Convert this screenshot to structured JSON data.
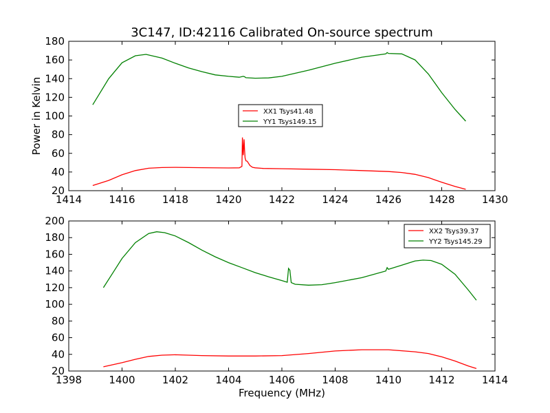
{
  "title": "3C147, ID:42116 Calibrated On-source spectrum",
  "chart_data": [
    {
      "type": "line",
      "xlabel": "",
      "ylabel": "Power in Kelvin",
      "xlim": [
        1414,
        1430
      ],
      "ylim": [
        20,
        180
      ],
      "xticks": [
        "1414",
        "1416",
        "1418",
        "1420",
        "1422",
        "1424",
        "1426",
        "1428",
        "1430"
      ],
      "yticks": [
        "20",
        "40",
        "60",
        "80",
        "100",
        "120",
        "140",
        "160",
        "180"
      ],
      "legend_position": "center",
      "series": [
        {
          "name": "XX1 Tsys41.48",
          "color": "#ff0000",
          "x": [
            1414.9,
            1415.5,
            1416.0,
            1416.5,
            1417.0,
            1417.5,
            1418.0,
            1419.0,
            1420.0,
            1420.4,
            1420.5,
            1420.52,
            1420.55,
            1420.58,
            1420.6,
            1420.62,
            1420.65,
            1420.7,
            1420.8,
            1420.9,
            1421.0,
            1421.3,
            1422.0,
            1423.0,
            1424.0,
            1425.0,
            1426.0,
            1426.5,
            1427.0,
            1427.5,
            1428.0,
            1428.5,
            1428.9
          ],
          "y": [
            25.5,
            31,
            37,
            41.5,
            44,
            44.8,
            45,
            44.6,
            44.3,
            44.5,
            46,
            77,
            58,
            75,
            64,
            55,
            52,
            51.5,
            47,
            45,
            44.5,
            43.8,
            43.5,
            43,
            42.5,
            41.5,
            40.5,
            39.5,
            37.5,
            34,
            29,
            24.5,
            21.5
          ]
        },
        {
          "name": "YY1 Tsys149.15",
          "color": "#008000",
          "x": [
            1414.9,
            1415.5,
            1416.0,
            1416.5,
            1416.9,
            1417.5,
            1418.0,
            1418.5,
            1419.0,
            1419.5,
            1420.0,
            1420.4,
            1420.55,
            1420.6,
            1420.65,
            1421.0,
            1421.5,
            1422.0,
            1423.0,
            1424.0,
            1425.0,
            1425.9,
            1425.95,
            1426.0,
            1426.5,
            1427.0,
            1427.5,
            1428.0,
            1428.5,
            1428.9
          ],
          "y": [
            112,
            140,
            157,
            164.5,
            166,
            162,
            156.5,
            151.5,
            147.5,
            144,
            142.5,
            141.5,
            142.5,
            142,
            141,
            140.5,
            140.8,
            142.5,
            149,
            156.5,
            163,
            166.5,
            168,
            167,
            166.5,
            160,
            145,
            125,
            107,
            94.5
          ]
        }
      ]
    },
    {
      "type": "line",
      "xlabel": "Frequency (MHz)",
      "ylabel": "",
      "xlim": [
        1398,
        1414
      ],
      "ylim": [
        20,
        200
      ],
      "xticks": [
        "1398",
        "1400",
        "1402",
        "1404",
        "1406",
        "1408",
        "1410",
        "1412",
        "1414"
      ],
      "yticks": [
        "20",
        "40",
        "60",
        "80",
        "100",
        "120",
        "140",
        "160",
        "180",
        "200"
      ],
      "legend_position": "top-right",
      "series": [
        {
          "name": "XX2 Tsys39.37",
          "color": "#ff0000",
          "x": [
            1399.3,
            1400.0,
            1400.5,
            1401.0,
            1401.5,
            1402.0,
            1403.0,
            1404.0,
            1405.0,
            1406.0,
            1407.0,
            1408.0,
            1409.0,
            1410.0,
            1411.0,
            1411.5,
            1412.0,
            1412.5,
            1413.0,
            1413.3
          ],
          "y": [
            25,
            30,
            34,
            37.5,
            39,
            39.5,
            38.5,
            38,
            38,
            38.5,
            41,
            44,
            45.5,
            45.5,
            43,
            41,
            37,
            32,
            26,
            23
          ]
        },
        {
          "name": "YY2 Tsys145.29",
          "color": "#008000",
          "x": [
            1399.3,
            1399.7,
            1400.0,
            1400.5,
            1401.0,
            1401.3,
            1401.6,
            1402.0,
            1402.5,
            1403.0,
            1403.5,
            1404.0,
            1404.5,
            1405.0,
            1405.5,
            1406.0,
            1406.2,
            1406.25,
            1406.3,
            1406.35,
            1406.5,
            1407.0,
            1407.5,
            1408.0,
            1409.0,
            1409.9,
            1409.95,
            1410.0,
            1410.5,
            1411.0,
            1411.3,
            1411.6,
            1412.0,
            1412.5,
            1413.0,
            1413.3
          ],
          "y": [
            120,
            140,
            155,
            174,
            185,
            187,
            186,
            182,
            174,
            165,
            157,
            150,
            144,
            138,
            133,
            128.5,
            126.5,
            143,
            141,
            126,
            124,
            123,
            123.5,
            126,
            132,
            140,
            144,
            142,
            147,
            152,
            153,
            152.5,
            148,
            136,
            117,
            105
          ]
        }
      ]
    }
  ]
}
